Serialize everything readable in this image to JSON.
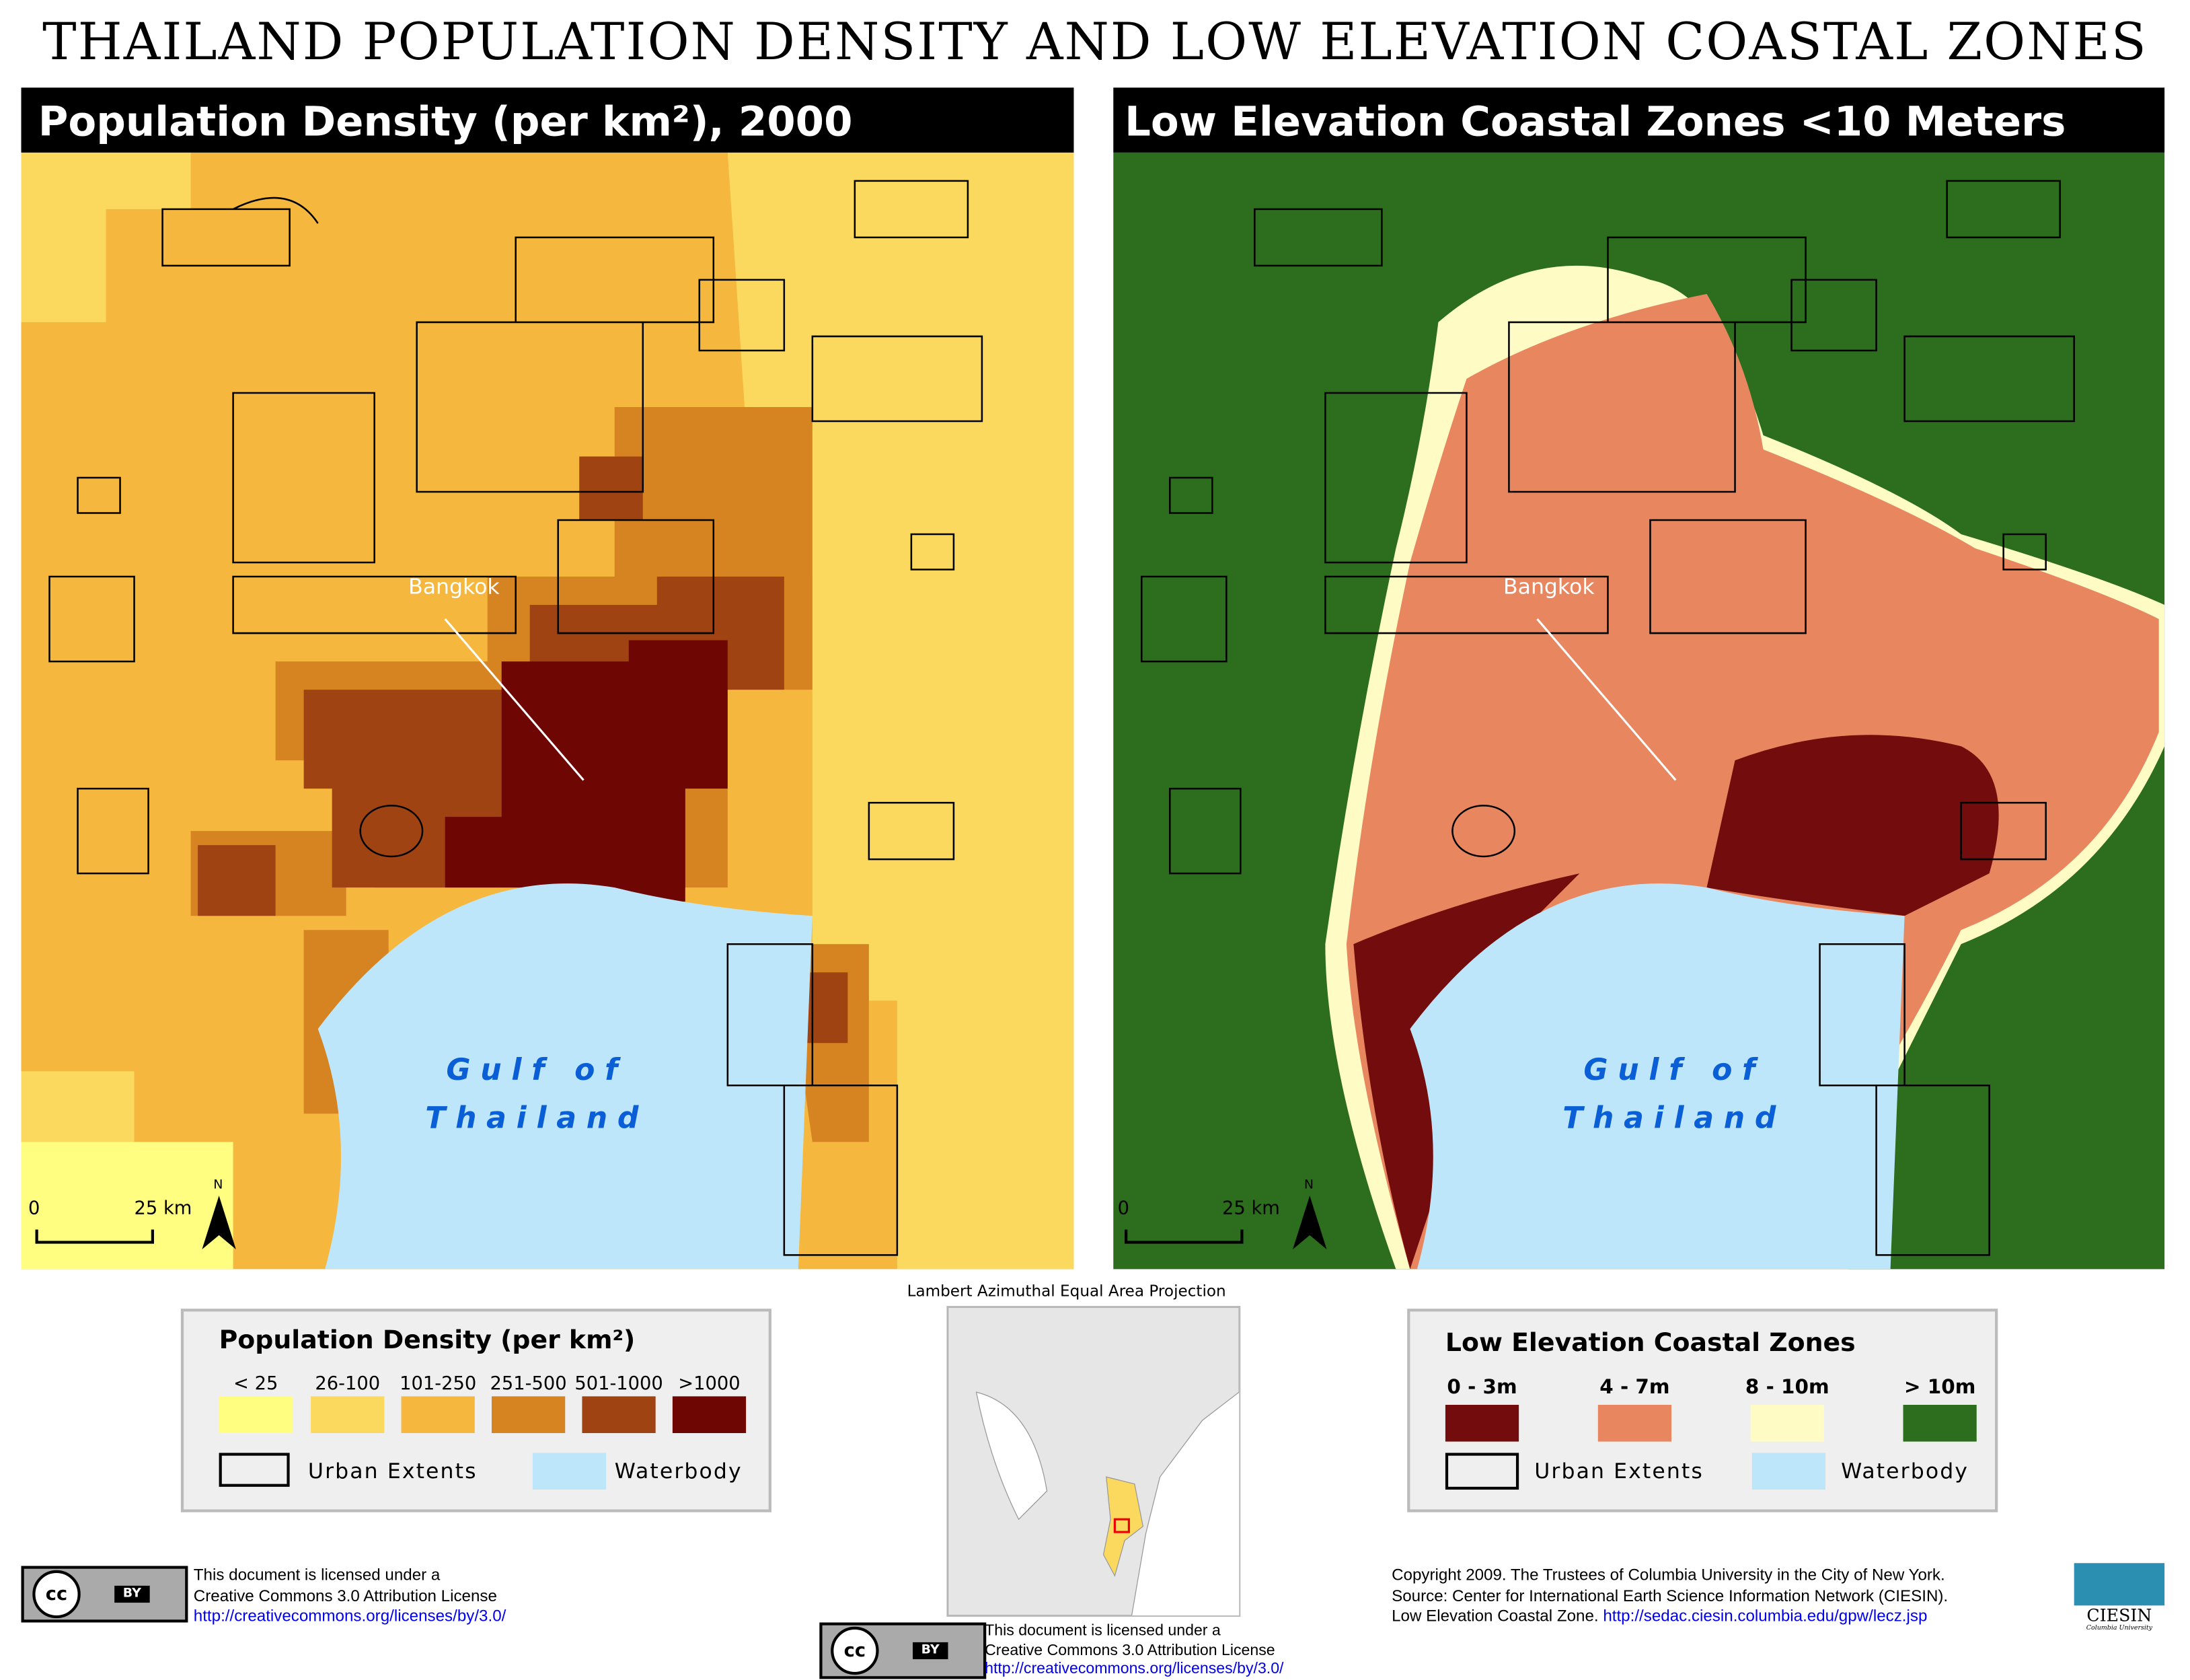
{
  "title": "THAILAND POPULATION DENSITY AND LOW ELEVATION COASTAL ZONES",
  "left_map": {
    "header": "Population Density (per km²), 2000",
    "city_label": "Bangkok",
    "gulf_label_1": "Gulf of",
    "gulf_label_2": "Thailand",
    "scale_0": "0",
    "scale_25": "25 km",
    "north": "N"
  },
  "right_map": {
    "header": "Low Elevation Coastal Zones <10 Meters",
    "city_label": "Bangkok",
    "gulf_label_1": "Gulf of",
    "gulf_label_2": "Thailand",
    "scale_0": "0",
    "scale_25": "25 km",
    "north": "N"
  },
  "projection": "Lambert Azimuthal Equal Area Projection",
  "legend_pop": {
    "title": "Population Density (per km²)",
    "classes": [
      {
        "label": "< 25",
        "color": "#fffe80"
      },
      {
        "label": "26-100",
        "color": "#fbd95e"
      },
      {
        "label": "101-250",
        "color": "#f5b73d"
      },
      {
        "label": "251-500",
        "color": "#d68322"
      },
      {
        "label": "501-1000",
        "color": "#a04313"
      },
      {
        "label": ">1000",
        "color": "#6e0603"
      }
    ],
    "urban": "Urban Extents",
    "water": "Waterbody",
    "water_color": "#bde6fb"
  },
  "legend_lecz": {
    "title": "Low Elevation Coastal Zones",
    "classes": [
      {
        "label": "0 - 3m",
        "color": "#730c0c"
      },
      {
        "label": "4 - 7m",
        "color": "#e8875f"
      },
      {
        "label": "8 - 10m",
        "color": "#fefcc4"
      },
      {
        "label": "> 10m",
        "color": "#2c6e1d"
      }
    ],
    "urban": "Urban Extents",
    "water": "Waterbody"
  },
  "license": {
    "line1": "This document is licensed under a",
    "line2": "Creative Commons 3.0 Attribution License",
    "url": "http://creativecommons.org/licenses/by/3.0/",
    "badge_cc": "cc",
    "badge_by": "BY"
  },
  "credits": {
    "line1": "Copyright 2009. The Trustees of Columbia University in the City of New York.",
    "line2": "Source: Center for International Earth Science Information Network (CIESIN).",
    "line3_text": "Low Elevation Coastal Zone.",
    "line3_url": "http://sedac.ciesin.columbia.edu/gpw/lecz.jsp",
    "logo_name": "CIESIN",
    "logo_sub": "Columbia University"
  }
}
